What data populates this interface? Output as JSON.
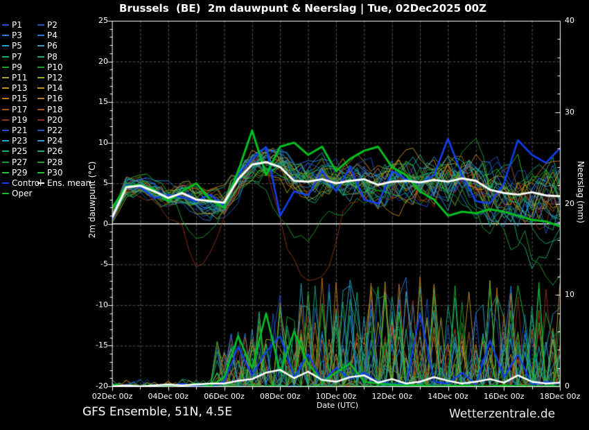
{
  "header": {
    "title": "Brussels  (BE)  2m dauwpunt & Neerslag | Tue, 02Dec2025 00Z"
  },
  "footer": {
    "left": "GFS Ensemble, 51N, 4.5E",
    "right": "Wetterzentrale.de"
  },
  "legend": {
    "entries": [
      {
        "label": "P1",
        "color": "#2050c8"
      },
      {
        "label": "P2",
        "color": "#2050c8"
      },
      {
        "label": "P3",
        "color": "#2878d8"
      },
      {
        "label": "P4",
        "color": "#2878d8"
      },
      {
        "label": "P5",
        "color": "#28a0c8"
      },
      {
        "label": "P6",
        "color": "#28a0c8"
      },
      {
        "label": "P7",
        "color": "#18a880"
      },
      {
        "label": "P8",
        "color": "#18a880"
      },
      {
        "label": "P9",
        "color": "#18a030"
      },
      {
        "label": "P10",
        "color": "#18a030"
      },
      {
        "label": "P11",
        "color": "#a8a818"
      },
      {
        "label": "P12",
        "color": "#a8a818"
      },
      {
        "label": "P13",
        "color": "#c09020"
      },
      {
        "label": "P14",
        "color": "#c09020"
      },
      {
        "label": "P15",
        "color": "#c07818"
      },
      {
        "label": "P16",
        "color": "#c07818"
      },
      {
        "label": "P17",
        "color": "#a85810"
      },
      {
        "label": "P18",
        "color": "#a85810"
      },
      {
        "label": "P19",
        "color": "#903018"
      },
      {
        "label": "P20",
        "color": "#903018"
      },
      {
        "label": "P21",
        "color": "#2050c8"
      },
      {
        "label": "P22",
        "color": "#2050c8"
      },
      {
        "label": "P23",
        "color": "#28a0c8"
      },
      {
        "label": "P24",
        "color": "#28a0c8"
      },
      {
        "label": "P25",
        "color": "#18a880"
      },
      {
        "label": "P26",
        "color": "#18a880"
      },
      {
        "label": "P27",
        "color": "#18a030"
      },
      {
        "label": "P28",
        "color": "#18a030"
      },
      {
        "label": "P29",
        "color": "#20c030"
      },
      {
        "label": "P30",
        "color": "#20c030"
      },
      {
        "label": "Control",
        "color": "#1040f0"
      },
      {
        "label": "Ens. mean",
        "color": "#ffffff"
      },
      {
        "label": "Oper",
        "color": "#00c020"
      }
    ]
  },
  "chart_data": {
    "type": "line",
    "title": "Brussels  (BE)  2m dauwpunt & Neerslag | Tue, 02Dec2025 00Z",
    "xlabel": "Date (UTC)",
    "ylabel_left": "2m dauwpunt (°C)",
    "ylabel_right": "Neerslag (mm)",
    "ylim_left": [
      -20,
      25
    ],
    "ylim_right": [
      0,
      40
    ],
    "x_days_range": [
      0,
      16
    ],
    "x_tick_labels": [
      "02Dec 00z",
      "04Dec 00z",
      "06Dec 00z",
      "08Dec 00z",
      "10Dec 00z",
      "12Dec 00z",
      "14Dec 00z",
      "16Dec 00z",
      "18Dec 00z"
    ],
    "y_left_ticks": [
      -20,
      -15,
      -10,
      -5,
      0,
      5,
      10,
      15,
      20,
      25
    ],
    "y_right_ticks": [
      0,
      10,
      20,
      30,
      40
    ],
    "grid": {
      "vertical_step_days": 1,
      "horizontal_step_degC": 5,
      "zero_line_solid": true,
      "dash_color": "#565656"
    },
    "series_time_step_hours": 12,
    "series": [
      {
        "name": "Ens. mean",
        "color": "#ffffff",
        "width": 3,
        "dewpoint_degC": [
          0.8,
          4.5,
          4.7,
          4.0,
          3.2,
          3.8,
          3.0,
          2.8,
          2.6,
          5.5,
          7.3,
          7.6,
          7.0,
          5.3,
          5.2,
          5.5,
          5.0,
          5.3,
          5.5,
          4.8,
          5.2,
          5.3,
          5.1,
          5.4,
          5.2,
          5.6,
          5.3,
          4.2,
          3.8,
          3.6,
          3.9,
          3.5,
          3.4
        ],
        "precip_mm": [
          0.0,
          0.1,
          0.0,
          0.1,
          0.2,
          0.1,
          0.2,
          0.3,
          0.3,
          0.6,
          0.8,
          1.5,
          1.8,
          0.9,
          1.6,
          0.7,
          0.5,
          1.0,
          1.2,
          0.4,
          0.8,
          0.3,
          0.5,
          1.0,
          0.6,
          0.3,
          0.5,
          0.8,
          0.4,
          1.2,
          0.5,
          0.3,
          0.4
        ]
      },
      {
        "name": "Control",
        "color": "#1040f0",
        "width": 2.6,
        "dewpoint_degC": [
          0.5,
          4.8,
          4.5,
          3.2,
          3.5,
          3.3,
          2.8,
          3.6,
          2.2,
          6.0,
          8.0,
          9.5,
          1.0,
          4.0,
          3.5,
          6.5,
          4.0,
          7.0,
          3.0,
          2.5,
          6.5,
          5.5,
          5.0,
          6.0,
          10.5,
          6.0,
          2.8,
          2.5,
          5.0,
          10.3,
          8.5,
          7.5,
          9.3
        ],
        "precip_mm": [
          0.0,
          0.0,
          0.0,
          0.0,
          0.0,
          0.3,
          0.0,
          0.0,
          0.5,
          4.3,
          1.2,
          3.8,
          5.5,
          1.0,
          3.5,
          0.5,
          2.0,
          0.8,
          1.5,
          0.5,
          0.3,
          0.2,
          8.0,
          0.5,
          0.3,
          1.5,
          0.2,
          5.0,
          1.0,
          3.5,
          0.2,
          0.5,
          0.3
        ]
      },
      {
        "name": "Oper",
        "color": "#00c020",
        "width": 3,
        "dewpoint_degC": [
          2.0,
          4.6,
          4.8,
          4.2,
          2.8,
          4.0,
          5.0,
          3.0,
          2.0,
          6.5,
          11.5,
          6.0,
          9.5,
          10.0,
          8.5,
          9.5,
          6.5,
          8.0,
          9.0,
          9.5,
          7.0,
          6.0,
          4.0,
          3.0,
          1.0,
          1.5,
          1.3,
          1.8,
          1.5,
          1.0,
          0.5,
          0.3,
          -0.3
        ],
        "precip_mm": [
          0.2,
          0.0,
          0.0,
          0.1,
          0.0,
          0.0,
          0.3,
          0.0,
          1.0,
          5.5,
          2.0,
          8.0,
          1.5,
          6.0,
          2.5,
          0.5,
          1.5,
          2.5,
          0.5,
          0.3,
          0.2,
          0.1,
          0.1,
          0.0,
          0.0,
          0.1,
          0.0,
          0.0,
          0.1,
          0.0,
          0.0,
          0.0,
          0.0
        ]
      }
    ],
    "members": {
      "count": 30,
      "time_step_hours": 6,
      "note": "30 perturbation members plotted around Ens. mean; colors follow legend entries P1-P30",
      "spread_base_degC": 1.6,
      "spread_growth_per_day": 0.28,
      "precip_spike_max_mm": 12,
      "outliers": {
        "late_cold_members": [
          21,
          6,
          24,
          27
        ],
        "late_cold_rates": [
          1.1,
          1.5,
          1.9,
          2.3
        ],
        "mid_dip_members": [
          9,
          19
        ],
        "mid_dip_depths": [
          8,
          11
        ],
        "early_dip_members": [
          18,
          8
        ],
        "early_dip_depths": [
          7,
          6
        ]
      }
    }
  }
}
